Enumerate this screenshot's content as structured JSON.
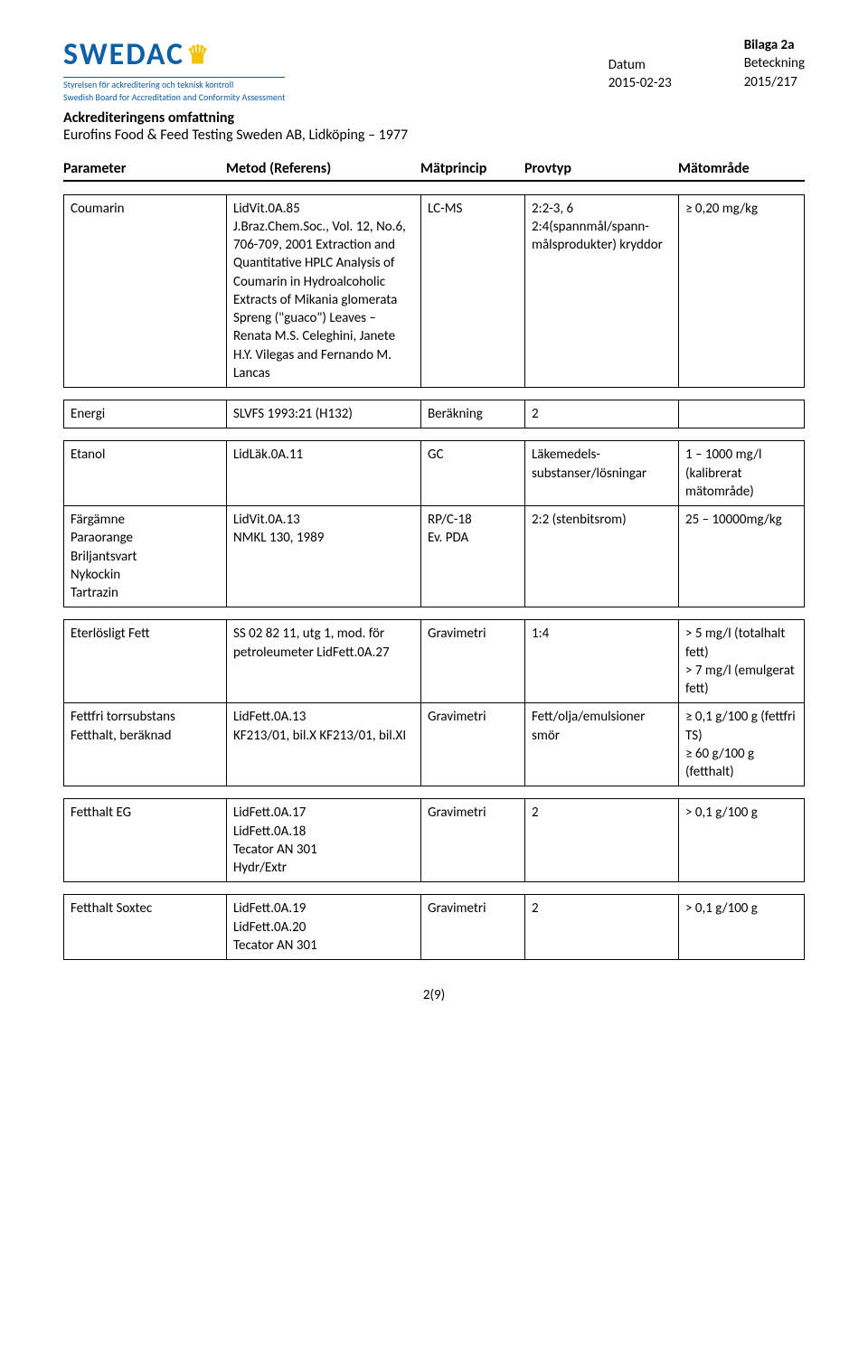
{
  "header": {
    "logo_name": "SWEDAC",
    "logo_sub1": "Styrelsen för ackreditering och teknisk kontroll",
    "logo_sub2": "Swedish Board for Accreditation and Conformity Assessment",
    "bilaga": "Bilaga 2a",
    "datum_label": "Datum",
    "datum_value": "2015-02-23",
    "beteckning_label": "Beteckning",
    "beteckning_value": "2015/217",
    "title1": "Ackrediteringens omfattning",
    "title2": "Eurofins Food & Feed Testing Sweden AB, Lidköping – 1977"
  },
  "columns": {
    "param": "Parameter",
    "method": "Metod (Referens)",
    "princip": "Mätprincip",
    "provtyp": "Provtyp",
    "range": "Mätområde"
  },
  "rows": {
    "r0": {
      "param": "Coumarin",
      "method": "LidVit.0A.85\nJ.Braz.Chem.Soc., Vol. 12, No.6, 706-709, 2001 Extraction and Quantitative HPLC Analysis of Coumarin in Hydroalcoholic Extracts of Mikania glomerata Spreng (\"guaco\") Leaves – Renata M.S. Celeghini, Janete H.Y. Vilegas and Fernando M. Lancas",
      "princip": "LC-MS",
      "provtyp": "2:2-3, 6\n2:4(spannmål/spann-målsprodukter) kryddor",
      "range": "≥ 0,20 mg/kg"
    },
    "r1": {
      "param": "Energi",
      "method": "SLVFS 1993:21 (H132)",
      "princip": "Beräkning",
      "provtyp": "2",
      "range": ""
    },
    "r2": {
      "param": "Etanol",
      "method": "LidLäk.0A.11",
      "princip": "GC",
      "provtyp": "Läkemedels-substanser/lösningar",
      "range": "1 – 1000 mg/l (kalibrerat mätområde)"
    },
    "r3": {
      "param": "Färgämne\nParaorange\nBriljantsvart\nNykockin\nTartrazin",
      "method": "LidVit.0A.13\nNMKL 130, 1989",
      "princip": "RP/C-18\nEv. PDA",
      "provtyp": "2:2 (stenbitsrom)",
      "range": "25 – 10000mg/kg"
    },
    "r4": {
      "param": "Eterlösligt Fett",
      "method": "SS 02 82 11, utg 1, mod. för petroleumeter LidFett.0A.27",
      "princip": "Gravimetri",
      "provtyp": "1:4",
      "range": "> 5 mg/l (totalhalt fett)\n> 7 mg/l (emulgerat fett)"
    },
    "r5": {
      "param": "Fettfri torrsubstans\nFetthalt, beräknad",
      "method": "LidFett.0A.13\nKF213/01, bil.X KF213/01, bil.XI",
      "princip": "Gravimetri",
      "provtyp": "Fett/olja/emulsioner smör",
      "range": "≥ 0,1 g/100 g (fettfri TS)\n≥ 60 g/100 g (fetthalt)"
    },
    "r6": {
      "param": "Fetthalt EG",
      "method": "LidFett.0A.17\nLidFett.0A.18\nTecator AN 301\nHydr/Extr",
      "princip": "Gravimetri",
      "provtyp": "2",
      "range": "> 0,1 g/100 g"
    },
    "r7": {
      "param": "Fetthalt Soxtec",
      "method": "LidFett.0A.19\nLidFett.0A.20\nTecator AN 301",
      "princip": "Gravimetri",
      "provtyp": "2",
      "range": "> 0,1 g/100 g"
    }
  },
  "page_number": "2(9)"
}
